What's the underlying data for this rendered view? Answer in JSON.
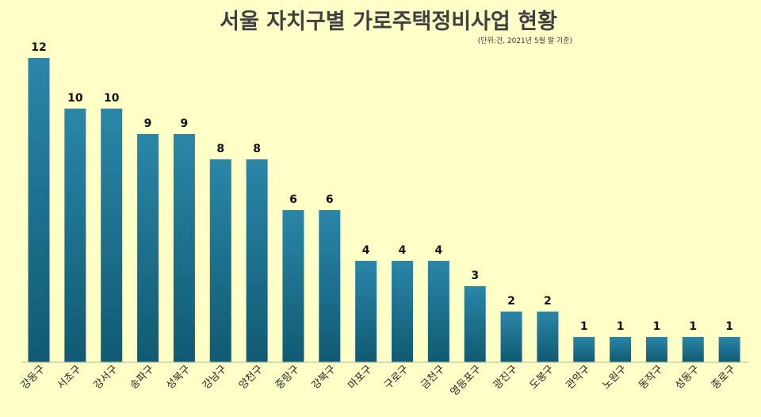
{
  "chart_data": {
    "type": "bar",
    "title": "서울 자치구별 가로주택정비사업 현황",
    "subtitle": "(단위:건, 2021년 5월 말 기준)",
    "xlabel": "",
    "ylabel": "",
    "ylim": [
      0,
      12
    ],
    "grid": false,
    "categories": [
      "강동구",
      "서초구",
      "강서구",
      "송파구",
      "성북구",
      "강남구",
      "양천구",
      "중랑구",
      "강북구",
      "마포구",
      "구로구",
      "금천구",
      "영등포구",
      "광진구",
      "도봉구",
      "관악구",
      "노원구",
      "동작구",
      "성동구",
      "종로구"
    ],
    "series": [
      {
        "values": [
          12,
          10,
          10,
          9,
          9,
          8,
          8,
          6,
          6,
          4,
          4,
          4,
          3,
          2,
          2,
          1,
          1,
          1,
          1,
          1
        ]
      }
    ],
    "colors": {
      "bar_top": "#2a86a8",
      "bar_bottom": "#105a72",
      "background": "#ffffc8",
      "axis": "#b8c8a0",
      "text": "#111111",
      "title": "#404040"
    }
  }
}
